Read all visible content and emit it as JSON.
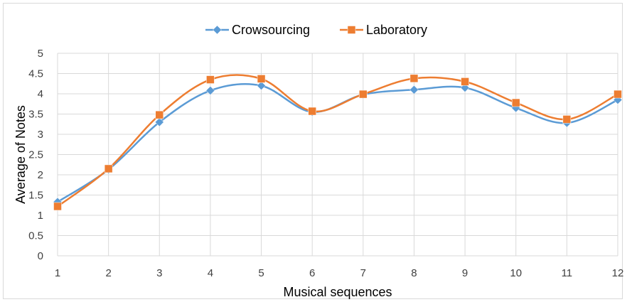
{
  "chart_data": {
    "type": "line",
    "smooth": true,
    "x": [
      1,
      2,
      3,
      4,
      5,
      6,
      7,
      8,
      9,
      10,
      11,
      12
    ],
    "series": [
      {
        "name": "Crowsourcing",
        "values": [
          1.33,
          2.13,
          3.3,
          4.08,
          4.2,
          3.55,
          3.98,
          4.1,
          4.15,
          3.65,
          3.28,
          3.85
        ],
        "color": "#5b9bd5",
        "marker": "diamond"
      },
      {
        "name": "Laboratory",
        "values": [
          1.22,
          2.15,
          3.48,
          4.35,
          4.37,
          3.57,
          3.99,
          4.38,
          4.3,
          3.78,
          3.37,
          3.99
        ],
        "color": "#ed7d31",
        "marker": "square"
      }
    ],
    "xlabel": "Musical sequences",
    "ylabel": "Average of Notes",
    "ylim": [
      0,
      5
    ],
    "yticks": [
      "0",
      "0.5",
      "1",
      "1.5",
      "2",
      "2.5",
      "3",
      "3.5",
      "4",
      "4.5",
      "5"
    ],
    "xticks": [
      "1",
      "2",
      "3",
      "4",
      "5",
      "6",
      "7",
      "8",
      "9",
      "10",
      "11",
      "12"
    ],
    "grid": true,
    "legend_position": "top"
  }
}
